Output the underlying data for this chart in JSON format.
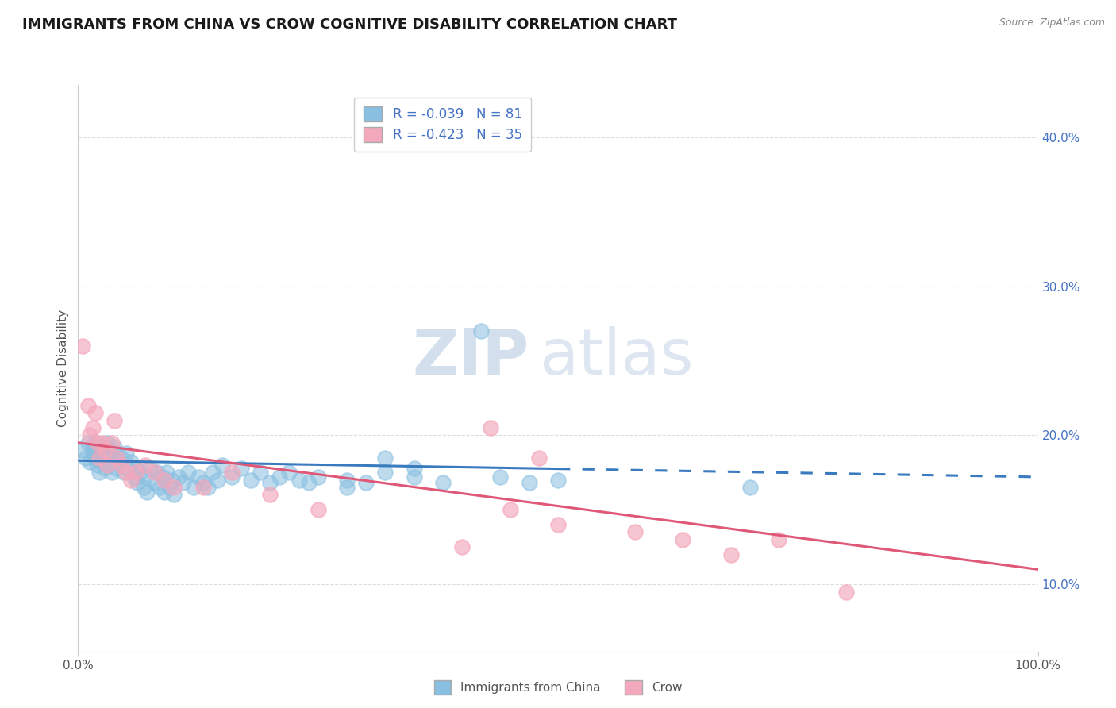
{
  "title": "IMMIGRANTS FROM CHINA VS CROW COGNITIVE DISABILITY CORRELATION CHART",
  "source_text": "Source: ZipAtlas.com",
  "ylabel": "Cognitive Disability",
  "legend_labels": [
    "Immigrants from China",
    "Crow"
  ],
  "legend_r": [
    -0.039,
    -0.423
  ],
  "legend_n": [
    81,
    35
  ],
  "blue_color": "#89bfe0",
  "pink_color": "#f4a8bc",
  "blue_line_color": "#3a7abf",
  "pink_line_color": "#e05878",
  "watermark_zip": "ZIP",
  "watermark_atlas": "atlas",
  "xmin": 0.0,
  "xmax": 1.0,
  "ymin": 0.055,
  "ymax": 0.435,
  "yticks_right": [
    0.1,
    0.2,
    0.3,
    0.4
  ],
  "ytick_labels_right": [
    "10.0%",
    "20.0%",
    "30.0%",
    "40.0%"
  ],
  "xticks": [
    0.0,
    1.0
  ],
  "xtick_labels": [
    "0.0%",
    "100.0%"
  ],
  "grid_color": "#cccccc",
  "grid_color2": "#dddddd",
  "background_color": "#ffffff",
  "blue_scatter_x": [
    0.005,
    0.008,
    0.01,
    0.012,
    0.015,
    0.015,
    0.018,
    0.018,
    0.02,
    0.02,
    0.022,
    0.022,
    0.025,
    0.025,
    0.028,
    0.028,
    0.03,
    0.03,
    0.032,
    0.033,
    0.035,
    0.035,
    0.038,
    0.04,
    0.04,
    0.042,
    0.045,
    0.048,
    0.05,
    0.052,
    0.055,
    0.058,
    0.06,
    0.062,
    0.065,
    0.068,
    0.07,
    0.072,
    0.075,
    0.08,
    0.082,
    0.085,
    0.088,
    0.09,
    0.092,
    0.095,
    0.098,
    0.1,
    0.105,
    0.11,
    0.115,
    0.12,
    0.125,
    0.13,
    0.135,
    0.14,
    0.145,
    0.15,
    0.16,
    0.17,
    0.18,
    0.19,
    0.2,
    0.21,
    0.22,
    0.23,
    0.24,
    0.25,
    0.28,
    0.3,
    0.32,
    0.35,
    0.38,
    0.32,
    0.35,
    0.28,
    0.44,
    0.47,
    0.5,
    0.7,
    0.42
  ],
  "blue_scatter_y": [
    0.19,
    0.185,
    0.195,
    0.182,
    0.188,
    0.192,
    0.185,
    0.195,
    0.18,
    0.19,
    0.185,
    0.175,
    0.192,
    0.182,
    0.188,
    0.178,
    0.185,
    0.195,
    0.18,
    0.19,
    0.185,
    0.175,
    0.192,
    0.188,
    0.178,
    0.182,
    0.185,
    0.175,
    0.188,
    0.178,
    0.182,
    0.172,
    0.178,
    0.168,
    0.175,
    0.165,
    0.172,
    0.162,
    0.178,
    0.168,
    0.175,
    0.165,
    0.172,
    0.162,
    0.175,
    0.165,
    0.17,
    0.16,
    0.172,
    0.168,
    0.175,
    0.165,
    0.172,
    0.168,
    0.165,
    0.175,
    0.17,
    0.18,
    0.172,
    0.178,
    0.17,
    0.175,
    0.168,
    0.172,
    0.175,
    0.17,
    0.168,
    0.172,
    0.17,
    0.168,
    0.175,
    0.172,
    0.168,
    0.185,
    0.178,
    0.165,
    0.172,
    0.168,
    0.17,
    0.165,
    0.27
  ],
  "pink_scatter_x": [
    0.005,
    0.01,
    0.012,
    0.015,
    0.018,
    0.02,
    0.022,
    0.025,
    0.028,
    0.03,
    0.035,
    0.038,
    0.04,
    0.045,
    0.05,
    0.055,
    0.06,
    0.07,
    0.08,
    0.09,
    0.1,
    0.13,
    0.16,
    0.2,
    0.25,
    0.4,
    0.43,
    0.45,
    0.48,
    0.5,
    0.58,
    0.63,
    0.68,
    0.73,
    0.8
  ],
  "pink_scatter_y": [
    0.26,
    0.22,
    0.2,
    0.205,
    0.215,
    0.195,
    0.185,
    0.195,
    0.19,
    0.18,
    0.195,
    0.21,
    0.185,
    0.18,
    0.175,
    0.17,
    0.175,
    0.18,
    0.175,
    0.17,
    0.165,
    0.165,
    0.175,
    0.16,
    0.15,
    0.125,
    0.205,
    0.15,
    0.185,
    0.14,
    0.135,
    0.13,
    0.12,
    0.13,
    0.095
  ],
  "blue_line_x_solid_end": 0.5,
  "blue_line_y_start": 0.183,
  "blue_line_y_end": 0.172,
  "pink_line_y_start": 0.195,
  "pink_line_y_end": 0.11
}
